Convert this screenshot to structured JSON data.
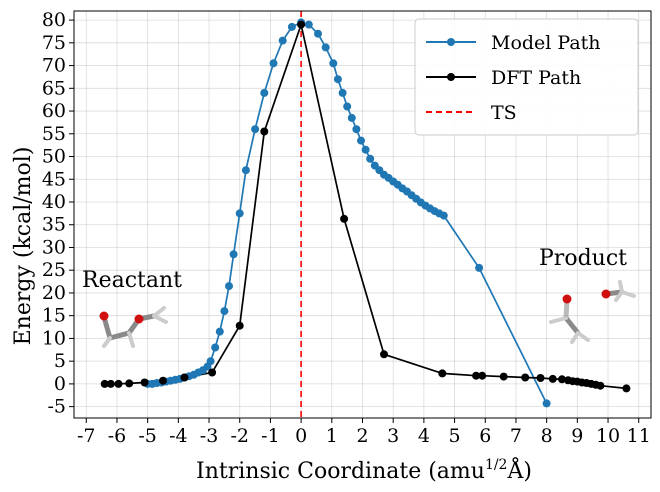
{
  "chart_data": {
    "type": "line",
    "title": "",
    "xlabel": "Intrinsic Coordinate (amu",
    "xlabel_sup": "1/2",
    "xlabel_tail": "Å)",
    "ylabel": "Energy (kcal/mol)",
    "xlim": [
      -7.4,
      11.4
    ],
    "ylim": [
      -7.5,
      82
    ],
    "xticks": [
      -7,
      -6,
      -5,
      -4,
      -3,
      -2,
      -1,
      0,
      1,
      2,
      3,
      4,
      5,
      6,
      7,
      8,
      9,
      10,
      11
    ],
    "yticks": [
      -5,
      0,
      5,
      10,
      15,
      20,
      25,
      30,
      35,
      40,
      45,
      50,
      55,
      60,
      65,
      70,
      75,
      80
    ],
    "grid": true,
    "ts_x": 0,
    "legend_position": "top-right",
    "legend": [
      "Model Path",
      "DFT Path",
      "TS"
    ],
    "colors": {
      "model": "#1f77b4",
      "dft": "#000000",
      "ts": "#ff0000"
    },
    "series": [
      {
        "name": "Model Path",
        "x": [
          -5.0,
          -4.85,
          -4.7,
          -4.55,
          -4.4,
          -4.25,
          -4.1,
          -3.95,
          -3.8,
          -3.65,
          -3.5,
          -3.35,
          -3.2,
          -3.05,
          -2.95,
          -2.8,
          -2.65,
          -2.5,
          -2.35,
          -2.2,
          -2.0,
          -1.8,
          -1.5,
          -1.2,
          -0.9,
          -0.6,
          -0.3,
          0.0,
          0.25,
          0.55,
          0.8,
          1.05,
          1.2,
          1.35,
          1.5,
          1.65,
          1.8,
          1.95,
          2.1,
          2.25,
          2.4,
          2.55,
          2.7,
          2.85,
          3.0,
          3.15,
          3.3,
          3.45,
          3.6,
          3.75,
          3.9,
          4.05,
          4.2,
          4.35,
          4.5,
          4.65,
          5.8,
          8.0
        ],
        "values": [
          0,
          0,
          0.2,
          0.3,
          0.5,
          0.7,
          0.9,
          1.1,
          1.4,
          1.7,
          2.0,
          2.5,
          3.0,
          3.8,
          5.0,
          8.0,
          11.5,
          16.0,
          21.5,
          28.5,
          37.5,
          47.0,
          56.0,
          64.0,
          70.5,
          75.5,
          78.5,
          79.5,
          79.0,
          77.0,
          74.0,
          70.5,
          67.0,
          64.0,
          61.0,
          58.5,
          56.0,
          53.5,
          51.5,
          49.5,
          48.0,
          47.0,
          46.0,
          45.3,
          44.5,
          43.8,
          43.0,
          42.3,
          41.5,
          40.7,
          39.9,
          39.2,
          38.6,
          38.0,
          37.5,
          37.0,
          25.5,
          -4.3
        ]
      },
      {
        "name": "DFT Path",
        "x": [
          -6.4,
          -6.2,
          -5.95,
          -5.6,
          -5.1,
          -4.5,
          -3.8,
          -2.9,
          -2.0,
          -1.2,
          0.0,
          1.4,
          2.7,
          4.6,
          5.7,
          5.9,
          6.6,
          7.3,
          7.8,
          8.2,
          8.5,
          8.7,
          8.85,
          9.0,
          9.15,
          9.3,
          9.45,
          9.6,
          9.75,
          10.6
        ],
        "values": [
          0,
          0,
          0,
          0.1,
          0.3,
          0.7,
          1.4,
          2.5,
          12.8,
          55.5,
          79.0,
          36.3,
          6.5,
          2.3,
          1.8,
          1.8,
          1.6,
          1.4,
          1.3,
          1.1,
          1.0,
          0.8,
          0.6,
          0.5,
          0.3,
          0.2,
          0.0,
          -0.2,
          -0.4,
          -1.0
        ]
      }
    ],
    "annotations": [
      "Reactant",
      "Product"
    ]
  }
}
